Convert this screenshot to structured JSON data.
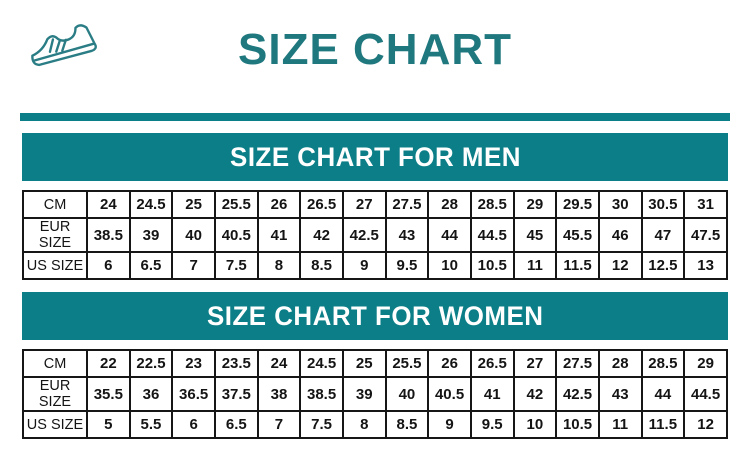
{
  "colors": {
    "teal": "#0b7e87",
    "title": "#20787f",
    "border": "#161616",
    "banner_text": "#ffffff",
    "cell_text": "#141414"
  },
  "header": {
    "title": "SIZE CHART",
    "icon": "sneaker-icon"
  },
  "sections": [
    {
      "title": "SIZE CHART FOR MEN",
      "rows": [
        {
          "label": "CM",
          "values": [
            "24",
            "24.5",
            "25",
            "25.5",
            "26",
            "26.5",
            "27",
            "27.5",
            "28",
            "28.5",
            "29",
            "29.5",
            "30",
            "30.5",
            "31"
          ]
        },
        {
          "label": "EUR SIZE",
          "values": [
            "38.5",
            "39",
            "40",
            "40.5",
            "41",
            "42",
            "42.5",
            "43",
            "44",
            "44.5",
            "45",
            "45.5",
            "46",
            "47",
            "47.5"
          ]
        },
        {
          "label": "US SIZE",
          "values": [
            "6",
            "6.5",
            "7",
            "7.5",
            "8",
            "8.5",
            "9",
            "9.5",
            "10",
            "10.5",
            "11",
            "11.5",
            "12",
            "12.5",
            "13"
          ]
        }
      ]
    },
    {
      "title": "SIZE CHART FOR WOMEN",
      "rows": [
        {
          "label": "CM",
          "values": [
            "22",
            "22.5",
            "23",
            "23.5",
            "24",
            "24.5",
            "25",
            "25.5",
            "26",
            "26.5",
            "27",
            "27.5",
            "28",
            "28.5",
            "29"
          ]
        },
        {
          "label": "EUR SIZE",
          "values": [
            "35.5",
            "36",
            "36.5",
            "37.5",
            "38",
            "38.5",
            "39",
            "40",
            "40.5",
            "41",
            "42",
            "42.5",
            "43",
            "44",
            "44.5"
          ]
        },
        {
          "label": "US SIZE",
          "values": [
            "5",
            "5.5",
            "6",
            "6.5",
            "7",
            "7.5",
            "8",
            "8.5",
            "9",
            "9.5",
            "10",
            "10.5",
            "11",
            "11.5",
            "12"
          ]
        }
      ]
    }
  ],
  "chart_data": {
    "type": "table",
    "title": "SIZE CHART",
    "tables": [
      {
        "title": "SIZE CHART FOR MEN",
        "row_headers": [
          "CM",
          "EUR SIZE",
          "US SIZE"
        ],
        "rows": [
          [
            24,
            24.5,
            25,
            25.5,
            26,
            26.5,
            27,
            27.5,
            28,
            28.5,
            29,
            29.5,
            30,
            30.5,
            31
          ],
          [
            38.5,
            39,
            40,
            40.5,
            41,
            42,
            42.5,
            43,
            44,
            44.5,
            45,
            45.5,
            46,
            47,
            47.5
          ],
          [
            6,
            6.5,
            7,
            7.5,
            8,
            8.5,
            9,
            9.5,
            10,
            10.5,
            11,
            11.5,
            12,
            12.5,
            13
          ]
        ]
      },
      {
        "title": "SIZE CHART FOR WOMEN",
        "row_headers": [
          "CM",
          "EUR SIZE",
          "US SIZE"
        ],
        "rows": [
          [
            22,
            22.5,
            23,
            23.5,
            24,
            24.5,
            25,
            25.5,
            26,
            26.5,
            27,
            27.5,
            28,
            28.5,
            29
          ],
          [
            35.5,
            36,
            36.5,
            37.5,
            38,
            38.5,
            39,
            40,
            40.5,
            41,
            42,
            42.5,
            43,
            44,
            44.5
          ],
          [
            5,
            5.5,
            6,
            6.5,
            7,
            7.5,
            8,
            8.5,
            9,
            9.5,
            10,
            10.5,
            11,
            11.5,
            12
          ]
        ]
      }
    ]
  }
}
